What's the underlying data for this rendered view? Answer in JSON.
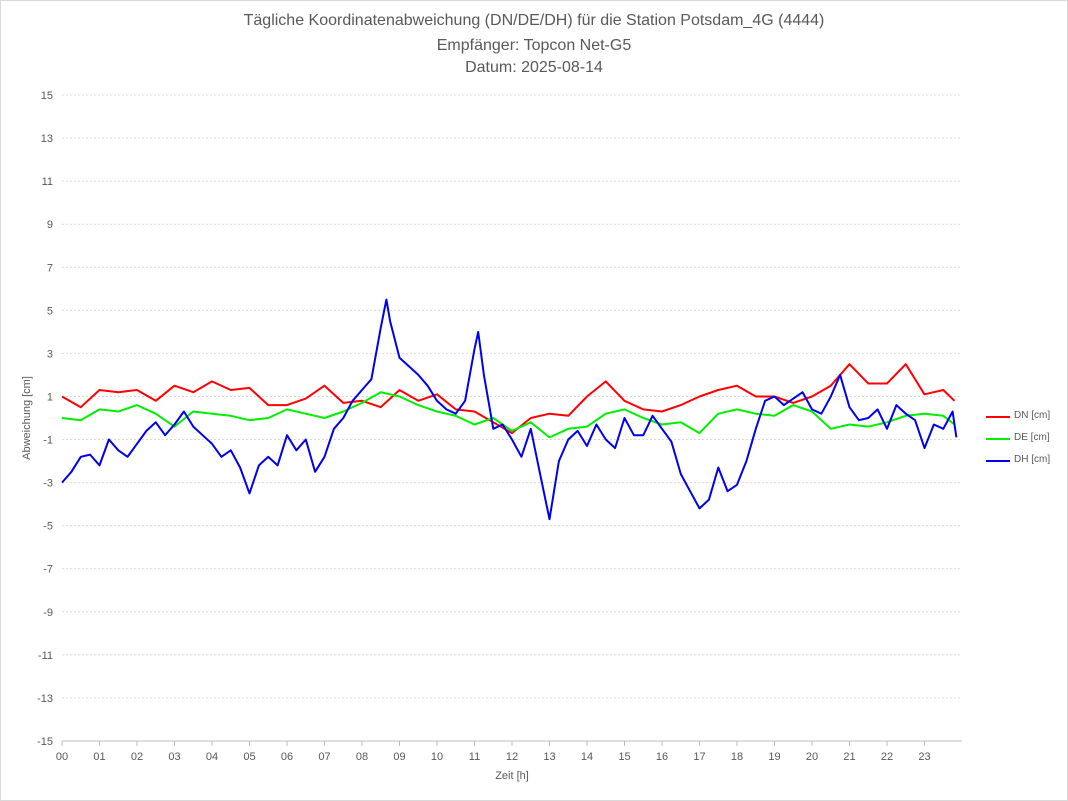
{
  "chart_data": {
    "type": "line",
    "title": [
      "Tägliche Koordinatenabweichung (DN/DE/DH) für die Station Potsdam_4G (4444)",
      "Empfänger: Topcon Net-G5",
      "Datum: 2025-08-14"
    ],
    "xlabel": "Zeit [h]",
    "ylabel": "Abweichung [cm]",
    "xlim": [
      0,
      24
    ],
    "ylim": [
      -15,
      15
    ],
    "x_ticks": [
      "00",
      "01",
      "02",
      "03",
      "04",
      "05",
      "06",
      "07",
      "08",
      "09",
      "10",
      "11",
      "12",
      "13",
      "14",
      "15",
      "16",
      "17",
      "18",
      "19",
      "20",
      "21",
      "22",
      "23"
    ],
    "y_ticks": [
      15,
      13,
      11,
      9,
      7,
      5,
      3,
      1,
      -1,
      -3,
      -5,
      -7,
      -9,
      -11,
      -13,
      -15
    ],
    "grid": "horizontal dotted",
    "legend_position": "right",
    "series": [
      {
        "name": "DN [cm]",
        "color": "#ff0000",
        "x": [
          0,
          0.5,
          1,
          1.5,
          2,
          2.5,
          3,
          3.5,
          4,
          4.5,
          5,
          5.5,
          6,
          6.5,
          7,
          7.5,
          8,
          8.5,
          9,
          9.5,
          10,
          10.5,
          11,
          11.5,
          12,
          12.5,
          13,
          13.5,
          14,
          14.5,
          15,
          15.5,
          16,
          16.5,
          17,
          17.5,
          18,
          18.5,
          19,
          19.5,
          20,
          20.5,
          21,
          21.5,
          22,
          22.5,
          23,
          23.5,
          23.8
        ],
        "values": [
          1.0,
          0.5,
          1.3,
          1.2,
          1.3,
          0.8,
          1.5,
          1.2,
          1.7,
          1.3,
          1.4,
          0.6,
          0.6,
          0.9,
          1.5,
          0.7,
          0.8,
          0.5,
          1.3,
          0.8,
          1.1,
          0.4,
          0.3,
          -0.2,
          -0.7,
          0.0,
          0.2,
          0.1,
          1.0,
          1.7,
          0.8,
          0.4,
          0.3,
          0.6,
          1.0,
          1.3,
          1.5,
          1.0,
          1.0,
          0.7,
          1.0,
          1.5,
          2.5,
          1.6,
          1.6,
          2.5,
          1.1,
          1.3,
          0.8
        ]
      },
      {
        "name": "DE [cm]",
        "color": "#00ee00",
        "x": [
          0,
          0.5,
          1,
          1.5,
          2,
          2.5,
          3,
          3.5,
          4,
          4.5,
          5,
          5.5,
          6,
          6.5,
          7,
          7.5,
          8,
          8.5,
          9,
          9.5,
          10,
          10.5,
          11,
          11.5,
          12,
          12.5,
          13,
          13.5,
          14,
          14.5,
          15,
          15.5,
          16,
          16.5,
          17,
          17.5,
          18,
          18.5,
          19,
          19.5,
          20,
          20.5,
          21,
          21.5,
          22,
          22.5,
          23,
          23.5,
          23.8
        ],
        "values": [
          0.0,
          -0.1,
          0.4,
          0.3,
          0.6,
          0.2,
          -0.4,
          0.3,
          0.2,
          0.1,
          -0.1,
          0.0,
          0.4,
          0.2,
          0.0,
          0.3,
          0.7,
          1.2,
          1.0,
          0.6,
          0.3,
          0.1,
          -0.3,
          0.0,
          -0.6,
          -0.2,
          -0.9,
          -0.5,
          -0.4,
          0.2,
          0.4,
          0.0,
          -0.3,
          -0.2,
          -0.7,
          0.2,
          0.4,
          0.2,
          0.1,
          0.6,
          0.3,
          -0.5,
          -0.3,
          -0.4,
          -0.2,
          0.1,
          0.2,
          0.1,
          -0.3
        ]
      },
      {
        "name": "DH [cm]",
        "color": "#0000ee",
        "x": [
          0,
          0.25,
          0.5,
          0.75,
          1,
          1.25,
          1.5,
          1.75,
          2,
          2.25,
          2.5,
          2.75,
          3,
          3.25,
          3.5,
          3.75,
          4,
          4.25,
          4.5,
          4.75,
          5,
          5.25,
          5.5,
          5.75,
          6,
          6.25,
          6.5,
          6.75,
          7,
          7.25,
          7.5,
          7.75,
          8,
          8.25,
          8.5,
          8.65,
          8.75,
          9,
          9.25,
          9.5,
          9.75,
          10,
          10.25,
          10.5,
          10.75,
          11,
          11.1,
          11.25,
          11.5,
          11.75,
          12,
          12.25,
          12.5,
          12.75,
          13,
          13.25,
          13.5,
          13.75,
          14,
          14.25,
          14.5,
          14.75,
          15,
          15.25,
          15.5,
          15.75,
          16,
          16.25,
          16.5,
          16.75,
          17,
          17.25,
          17.5,
          17.75,
          18,
          18.25,
          18.5,
          18.75,
          19,
          19.25,
          19.5,
          19.75,
          20,
          20.25,
          20.5,
          20.75,
          21,
          21.25,
          21.5,
          21.75,
          22,
          22.25,
          22.5,
          22.75,
          23,
          23.25,
          23.5,
          23.75,
          23.85
        ],
        "values": [
          -3.0,
          -2.5,
          -1.8,
          -1.7,
          -2.2,
          -1.0,
          -1.5,
          -1.8,
          -1.2,
          -0.6,
          -0.2,
          -0.8,
          -0.3,
          0.3,
          -0.4,
          -0.8,
          -1.2,
          -1.8,
          -1.5,
          -2.3,
          -3.5,
          -2.2,
          -1.8,
          -2.2,
          -0.8,
          -1.5,
          -1.0,
          -2.5,
          -1.8,
          -0.5,
          0.0,
          0.8,
          1.3,
          1.8,
          4.2,
          5.5,
          4.5,
          2.8,
          2.4,
          2.0,
          1.5,
          0.8,
          0.4,
          0.2,
          0.8,
          3.2,
          4.0,
          2.0,
          -0.5,
          -0.3,
          -1.0,
          -1.8,
          -0.5,
          -2.6,
          -4.7,
          -2.0,
          -1.0,
          -0.6,
          -1.3,
          -0.3,
          -1.0,
          -1.4,
          0.0,
          -0.8,
          -0.8,
          0.1,
          -0.5,
          -1.1,
          -2.6,
          -3.4,
          -4.2,
          -3.8,
          -2.3,
          -3.4,
          -3.1,
          -2.0,
          -0.5,
          0.8,
          1.0,
          0.6,
          0.9,
          1.2,
          0.4,
          0.2,
          1.0,
          2.0,
          0.5,
          -0.1,
          0.0,
          0.4,
          -0.5,
          0.6,
          0.2,
          -0.1,
          -1.4,
          -0.3,
          -0.5,
          0.3,
          -0.9
        ]
      }
    ]
  }
}
